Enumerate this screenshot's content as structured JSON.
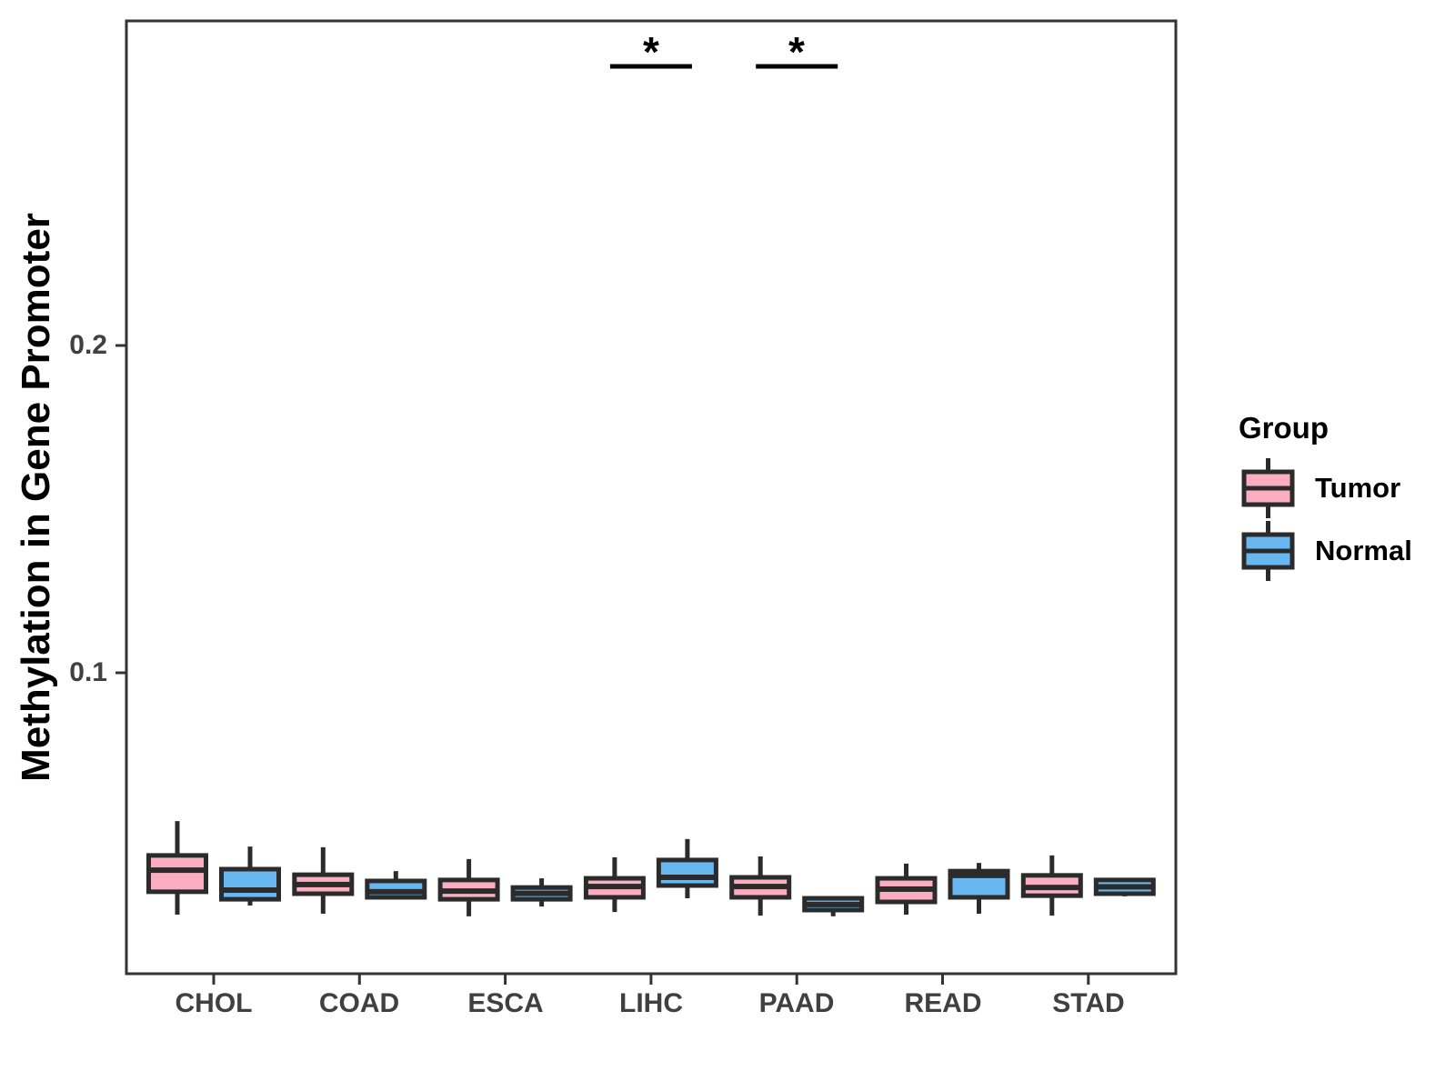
{
  "y_axis": {
    "label": "Methylation in Gene Promoter",
    "tick_labels": [
      "0.1",
      "0.2"
    ]
  },
  "x_axis": {
    "categories": [
      "CHOL",
      "COAD",
      "ESCA",
      "LIHC",
      "PAAD",
      "READ",
      "STAD"
    ]
  },
  "legend": {
    "title": "Group",
    "items": [
      {
        "label": "Tumor",
        "color": "#FAAEC0"
      },
      {
        "label": "Normal",
        "color": "#69B7F1"
      }
    ]
  },
  "style": {
    "box_border_color": "#2B2B2B",
    "panel_border_color": "#333333",
    "tick_color": "#333333",
    "tick_text_color": "#404040",
    "annotation_color": "#000000",
    "background": "#FFFFFF"
  },
  "chart_data": {
    "type": "boxplot",
    "title": "",
    "xlabel": "",
    "ylabel": "Methylation in Gene Promoter",
    "ylim": [
      0.008,
      0.3
    ],
    "yticks": [
      0.1,
      0.2
    ],
    "grid": false,
    "legend_position": "right",
    "categories": [
      "CHOL",
      "COAD",
      "ESCA",
      "LIHC",
      "PAAD",
      "READ",
      "STAD"
    ],
    "series": [
      {
        "name": "Tumor",
        "color": "#FAAEC0",
        "boxes": [
          {
            "category": "CHOL",
            "min": 0.0261,
            "q1": 0.0331,
            "median": 0.0397,
            "q3": 0.0442,
            "max": 0.0547
          },
          {
            "category": "COAD",
            "min": 0.0264,
            "q1": 0.0325,
            "median": 0.0353,
            "q3": 0.0383,
            "max": 0.0467
          },
          {
            "category": "ESCA",
            "min": 0.0256,
            "q1": 0.0308,
            "median": 0.0333,
            "q3": 0.0367,
            "max": 0.0431
          },
          {
            "category": "LIHC",
            "min": 0.0269,
            "q1": 0.0314,
            "median": 0.0347,
            "q3": 0.0372,
            "max": 0.0436
          },
          {
            "category": "PAAD",
            "min": 0.0258,
            "q1": 0.0314,
            "median": 0.0347,
            "q3": 0.0375,
            "max": 0.0439
          },
          {
            "category": "READ",
            "min": 0.0261,
            "q1": 0.03,
            "median": 0.0339,
            "q3": 0.0372,
            "max": 0.0417
          },
          {
            "category": "STAD",
            "min": 0.0258,
            "q1": 0.0319,
            "median": 0.0344,
            "q3": 0.0381,
            "max": 0.0442
          }
        ]
      },
      {
        "name": "Normal",
        "color": "#69B7F1",
        "boxes": [
          {
            "category": "CHOL",
            "min": 0.0289,
            "q1": 0.0308,
            "median": 0.0336,
            "q3": 0.04,
            "max": 0.0469
          },
          {
            "category": "COAD",
            "min": 0.0308,
            "q1": 0.0314,
            "median": 0.0331,
            "q3": 0.0364,
            "max": 0.0394
          },
          {
            "category": "ESCA",
            "min": 0.0286,
            "q1": 0.0308,
            "median": 0.0326,
            "q3": 0.0344,
            "max": 0.0372
          },
          {
            "category": "LIHC",
            "min": 0.0311,
            "q1": 0.035,
            "median": 0.0375,
            "q3": 0.0428,
            "max": 0.0492
          },
          {
            "category": "PAAD",
            "min": 0.0256,
            "q1": 0.0275,
            "median": 0.0292,
            "q3": 0.0311,
            "max": 0.0311
          },
          {
            "category": "READ",
            "min": 0.0264,
            "q1": 0.0314,
            "median": 0.0381,
            "q3": 0.0394,
            "max": 0.0419
          },
          {
            "category": "STAD",
            "min": 0.0317,
            "q1": 0.0325,
            "median": 0.0346,
            "q3": 0.0367,
            "max": 0.0372
          }
        ]
      }
    ],
    "annotations": [
      {
        "category": "LIHC",
        "text": "*"
      },
      {
        "category": "PAAD",
        "text": "*"
      }
    ]
  }
}
